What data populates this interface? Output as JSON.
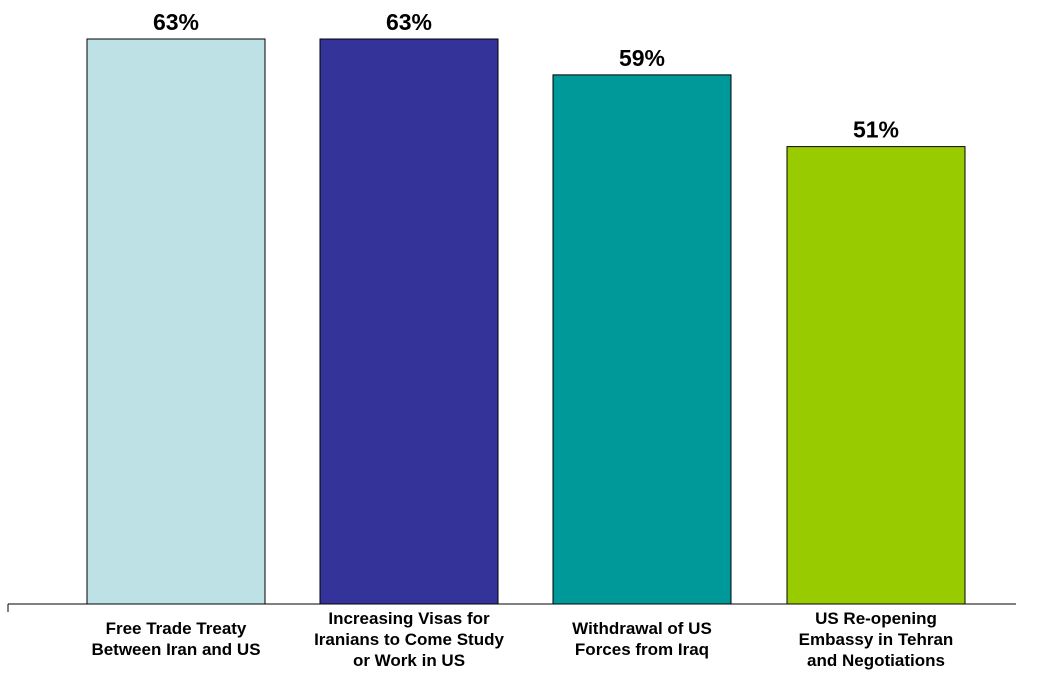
{
  "chart_data": {
    "type": "bar",
    "categories": [
      "Free Trade Treaty\nBetween Iran and US",
      "Increasing Visas for\nIranians to Come Study\nor Work in US",
      "Withdrawal of US\nForces from Iraq",
      "US Re-opening\nEmbassy in Tehran\nand Negotiations"
    ],
    "values": [
      63,
      63,
      59,
      51
    ],
    "value_labels": [
      "63%",
      "63%",
      "59%",
      "51%"
    ],
    "colors": [
      "#BDE1E4",
      "#333399",
      "#009999",
      "#99CC00"
    ],
    "title": "",
    "xlabel": "",
    "ylabel": "",
    "ylim": [
      0,
      63
    ],
    "grid": false,
    "legend": "none"
  }
}
